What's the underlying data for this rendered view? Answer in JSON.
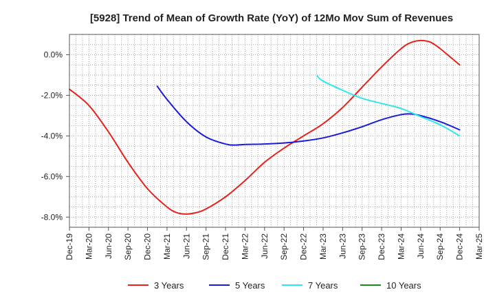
{
  "chart_data": {
    "type": "line",
    "title": "[5928]  Trend of Mean of Growth Rate (YoY) of 12Mo Mov Sum of Revenues",
    "xlabel": "",
    "ylabel": "",
    "ylim": [
      -8.5,
      1.0
    ],
    "y_ticks": [
      0,
      -2,
      -4,
      -6,
      -8
    ],
    "y_tick_labels": [
      "0.0%",
      "-2.0%",
      "-4.0%",
      "-6.0%",
      "-8.0%"
    ],
    "x_tick_labels": [
      "Dec-19",
      "Mar-20",
      "Jun-20",
      "Sep-20",
      "Dec-20",
      "Mar-21",
      "Jun-21",
      "Sep-21",
      "Dec-21",
      "Mar-22",
      "Jun-22",
      "Sep-22",
      "Dec-22",
      "Mar-23",
      "Jun-23",
      "Sep-23",
      "Dec-23",
      "Mar-24",
      "Jun-24",
      "Sep-24",
      "Dec-24",
      "Mar-25"
    ],
    "x_range_quarters": [
      0,
      21
    ],
    "grid": true,
    "legend_position": "bottom",
    "series": [
      {
        "name": "3 Years",
        "color": "#e8201a",
        "x": [
          0,
          1,
          2,
          3,
          4,
          5,
          5.5,
          6,
          6.5,
          7,
          8,
          9,
          10,
          11,
          12,
          13,
          14,
          15,
          16,
          17,
          17.5,
          18,
          18.5,
          19,
          19.5,
          20
        ],
        "y": [
          -1.7,
          -2.5,
          -3.8,
          -5.3,
          -6.6,
          -7.5,
          -7.78,
          -7.85,
          -7.78,
          -7.6,
          -7.0,
          -6.2,
          -5.3,
          -4.6,
          -4.0,
          -3.4,
          -2.6,
          -1.6,
          -0.6,
          0.3,
          0.6,
          0.7,
          0.62,
          0.3,
          -0.1,
          -0.5
        ]
      },
      {
        "name": "5 Years",
        "color": "#1a1adc",
        "x": [
          4.5,
          5,
          6,
          7,
          8,
          8.5,
          9,
          10,
          11,
          12,
          13,
          14,
          15,
          16,
          17,
          17.5,
          18,
          19,
          20
        ],
        "y": [
          -1.55,
          -2.2,
          -3.3,
          -4.05,
          -4.4,
          -4.45,
          -4.42,
          -4.4,
          -4.35,
          -4.25,
          -4.1,
          -3.85,
          -3.55,
          -3.2,
          -2.95,
          -2.92,
          -3.0,
          -3.3,
          -3.7
        ]
      },
      {
        "name": "7 Years",
        "color": "#2ae8ee",
        "x": [
          12.7,
          13,
          14,
          15,
          16,
          17,
          18,
          19,
          20
        ],
        "y": [
          -1.05,
          -1.3,
          -1.75,
          -2.15,
          -2.4,
          -2.65,
          -3.05,
          -3.45,
          -4.0
        ]
      },
      {
        "name": "10 Years",
        "color": "#1a8a1a",
        "x": [],
        "y": []
      }
    ]
  }
}
